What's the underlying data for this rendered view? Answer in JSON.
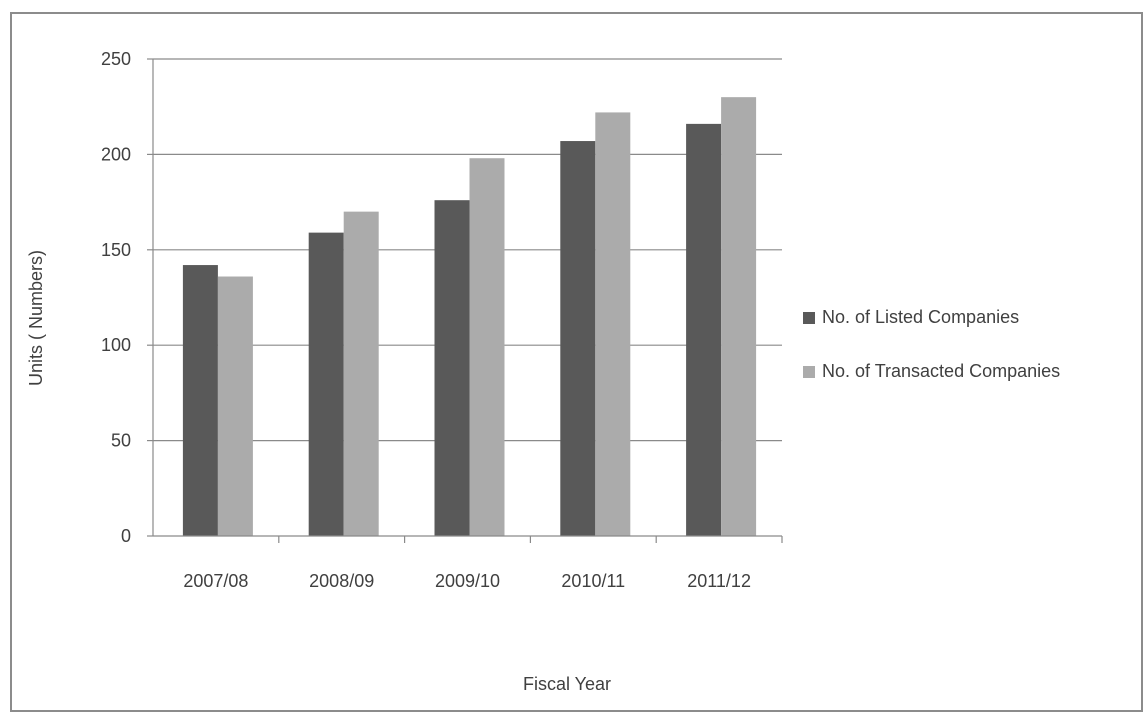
{
  "chart_data": {
    "type": "bar",
    "title": "",
    "xlabel": "Fiscal Year",
    "ylabel": "Units ( Numbers)",
    "categories": [
      "2007/08",
      "2008/09",
      "2009/10",
      "2010/11",
      "2011/12"
    ],
    "series": [
      {
        "name": "No. of Listed Companies",
        "color": "#595959",
        "values": [
          142,
          159,
          176,
          207,
          216
        ]
      },
      {
        "name": "No. of Transacted Companies",
        "color": "#ababab",
        "values": [
          136,
          170,
          198,
          222,
          230
        ]
      }
    ],
    "ylim": [
      0,
      250
    ],
    "yticks": [
      "0",
      "50",
      "100",
      "150",
      "200",
      "250"
    ],
    "grid": true,
    "legend_position": "right"
  }
}
